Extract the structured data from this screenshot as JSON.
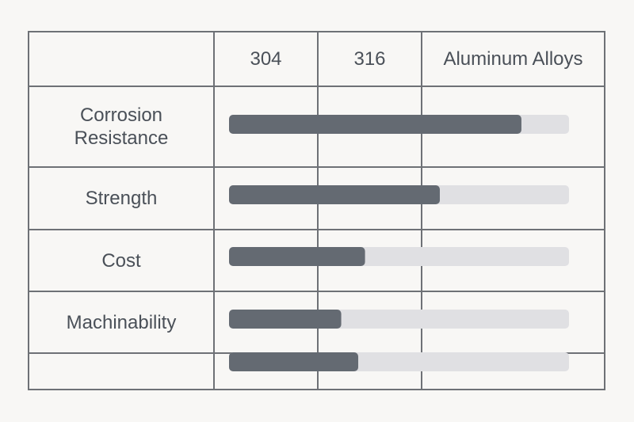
{
  "table": {
    "columns": [
      "304",
      "316",
      "Aluminum Alloys"
    ],
    "rows": [
      {
        "label": "Corrosion Resistance",
        "value": 86
      },
      {
        "label": "Strength",
        "value": 62
      },
      {
        "label": "Cost",
        "value": 40
      },
      {
        "label": "Machinability",
        "value": 33
      },
      {
        "value": 38
      }
    ],
    "scale_max": 100,
    "bar_color": "#646a72",
    "track_color": "#e0e0e3"
  }
}
